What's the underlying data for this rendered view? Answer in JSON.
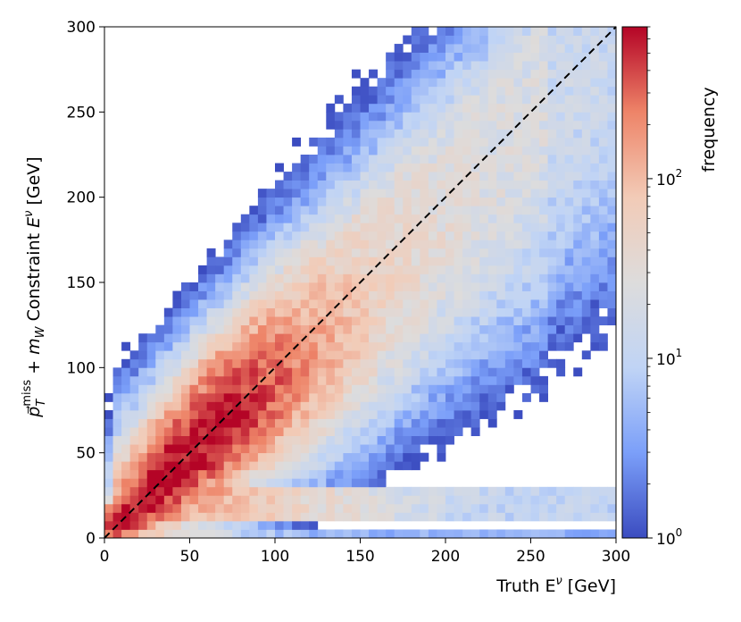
{
  "chart_data": {
    "type": "heatmap",
    "title": "",
    "xlabel": "Truth E^ν [GeV]",
    "ylabel": "p⃗_T^miss + m_W Constraint E^ν [GeV]",
    "xlim": [
      0,
      300
    ],
    "ylim": [
      0,
      300
    ],
    "xticks": [
      "0",
      "50",
      "100",
      "150",
      "200",
      "250",
      "300"
    ],
    "yticks": [
      "0",
      "50",
      "100",
      "150",
      "200",
      "250",
      "300"
    ],
    "bins": {
      "count_x": 60,
      "count_y": 60,
      "width": 5
    },
    "colorbar": {
      "label": "frequency",
      "scale": "log",
      "range": [
        1,
        700
      ],
      "ticks": [
        "10^0",
        "10^1",
        "10^2"
      ],
      "colormap": "coolwarm",
      "colors": [
        "#3b4cc0",
        "#7b9ff9",
        "#c0d4f5",
        "#dddcdc",
        "#f2cbb7",
        "#ee8468",
        "#b40426"
      ]
    },
    "reference_line": {
      "label": "y = x",
      "style": "dashed",
      "color": "#000000",
      "points": [
        [
          0,
          0
        ],
        [
          300,
          300
        ]
      ]
    },
    "density_model": {
      "note": "frequency per bin; peak near (40, 40); ridge along y = x",
      "peak": {
        "x": 40,
        "y": 40,
        "frequency": 700
      }
    }
  }
}
